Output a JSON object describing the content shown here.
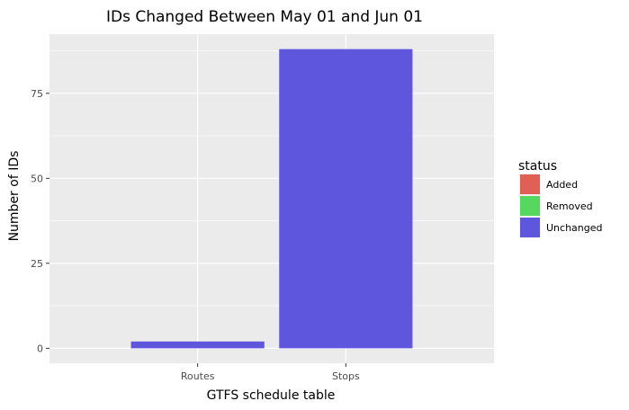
{
  "chart_data": {
    "type": "bar",
    "title": "IDs Changed Between May 01 and Jun 01",
    "xlabel": "GTFS schedule table",
    "ylabel": "Number of IDs",
    "categories": [
      "Routes",
      "Stops"
    ],
    "series": [
      {
        "name": "Added",
        "color": "#e06055",
        "values": [
          0,
          0
        ]
      },
      {
        "name": "Removed",
        "color": "#55d85f",
        "values": [
          0,
          0
        ]
      },
      {
        "name": "Unchanged",
        "color": "#5e57de",
        "values": [
          2,
          88
        ]
      }
    ],
    "yticks": [
      0,
      25,
      50,
      75
    ],
    "ylim": [
      -4.4,
      92.4
    ],
    "grid": true,
    "legend": {
      "title": "status",
      "placement": "right",
      "entries": [
        "Added",
        "Removed",
        "Unchanged"
      ]
    }
  }
}
